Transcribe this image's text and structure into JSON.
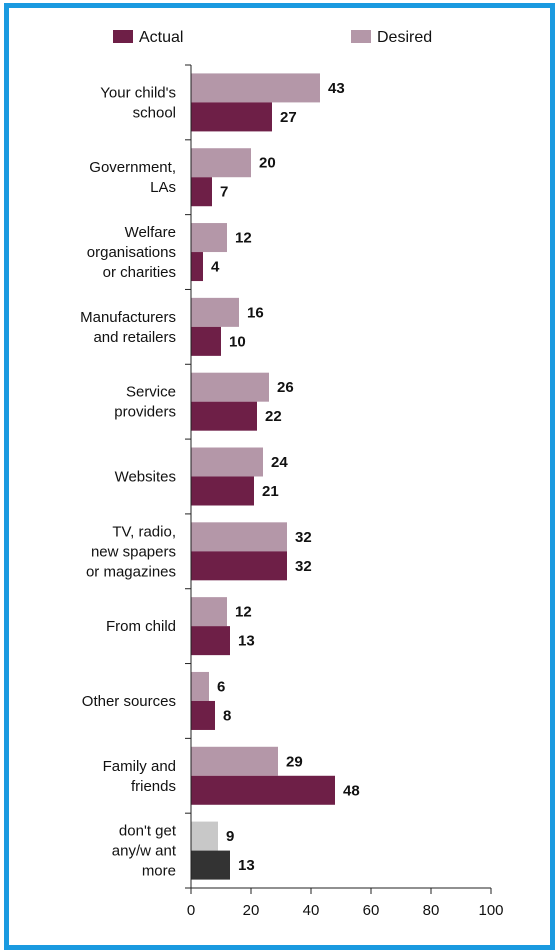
{
  "chart_data": {
    "type": "bar",
    "orientation": "horizontal",
    "categories": [
      [
        "Your child's",
        "school"
      ],
      [
        "Government,",
        "LAs"
      ],
      [
        "Welfare",
        "organisations",
        "or charities"
      ],
      [
        "Manufacturers",
        "and retailers"
      ],
      [
        "Service",
        "providers"
      ],
      [
        "Websites"
      ],
      [
        "TV, radio,",
        "new spapers",
        "or magazines"
      ],
      [
        "From child"
      ],
      [
        "Other sources"
      ],
      [
        "Family and",
        "friends"
      ],
      [
        "don't get",
        "any/w ant",
        "more"
      ]
    ],
    "series": [
      {
        "name": "Actual",
        "color": "#6e1f47",
        "values": [
          27,
          7,
          4,
          10,
          22,
          21,
          32,
          13,
          8,
          48,
          13
        ]
      },
      {
        "name": "Desired",
        "color": "#b497a8",
        "values": [
          43,
          20,
          12,
          16,
          26,
          24,
          32,
          12,
          6,
          29,
          9
        ]
      }
    ],
    "special_colors": {
      "desired_last": "#c8c8c8",
      "actual_last": "#333333"
    },
    "xlim": [
      0,
      100
    ],
    "xticks": [
      "0",
      "20",
      "40",
      "60",
      "80",
      "100"
    ],
    "legend_position": "top"
  }
}
